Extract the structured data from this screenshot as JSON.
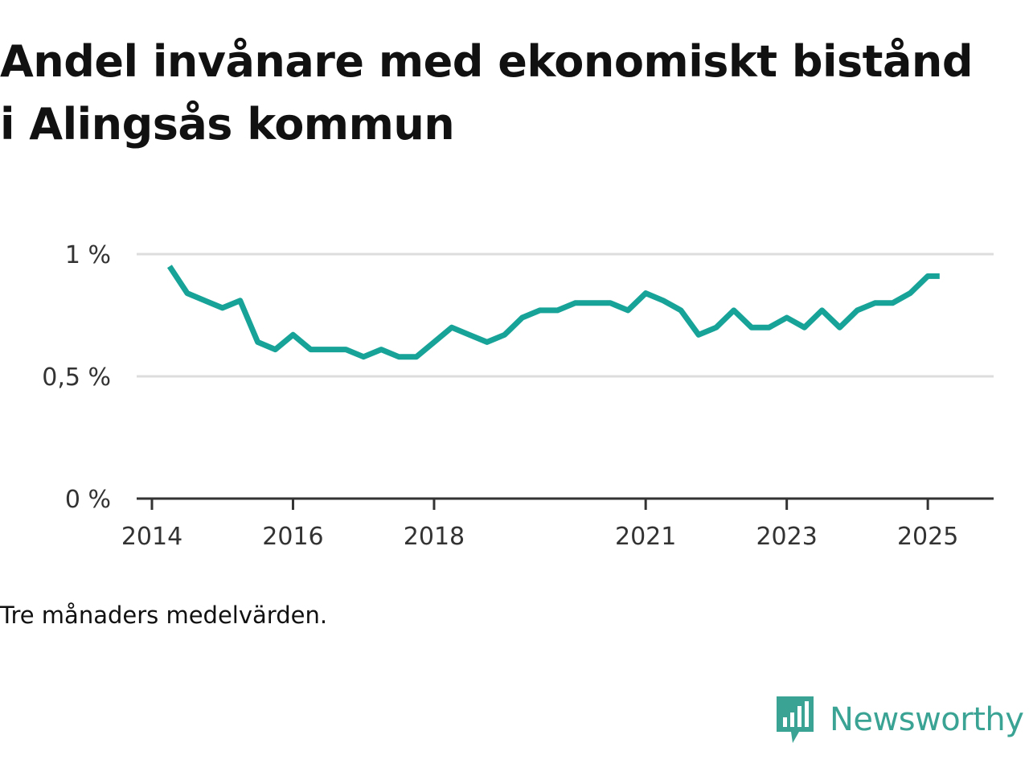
{
  "title": "Andel invånare med ekonomiskt bistånd i Alingsås kommun",
  "note": "Tre månaders medelvärden.",
  "brand": {
    "name": "Newsworthy",
    "color": "#3aa394",
    "icon": "newsworthy-logo-icon"
  },
  "chart_data": {
    "type": "line",
    "title": "Andel invånare med ekonomiskt bistånd i Alingsås kommun",
    "xlabel": "",
    "ylabel": "",
    "y_ticks": [
      {
        "value": 0,
        "label": "0 %"
      },
      {
        "value": 0.5,
        "label": "0,5 %"
      },
      {
        "value": 1,
        "label": "1 %"
      }
    ],
    "x_ticks": [
      "2014",
      "2016",
      "2018",
      "2021",
      "2023",
      "2025"
    ],
    "ylim": [
      0,
      1
    ],
    "xlim": [
      "2014-01",
      "2025-11"
    ],
    "grid": true,
    "line_color": "#17a398",
    "series": [
      {
        "x": [
          "2014-04",
          "2014-07",
          "2014-10",
          "2015-01",
          "2015-04",
          "2015-07",
          "2015-10",
          "2016-01",
          "2016-04",
          "2016-07",
          "2016-10",
          "2017-01",
          "2017-04",
          "2017-07",
          "2017-10",
          "2018-01",
          "2018-04",
          "2018-07",
          "2018-10",
          "2019-01",
          "2019-04",
          "2019-07",
          "2019-10",
          "2020-01",
          "2020-04",
          "2020-07",
          "2020-10",
          "2021-01",
          "2021-04",
          "2021-07",
          "2021-10",
          "2022-01",
          "2022-04",
          "2022-07",
          "2022-10",
          "2023-01",
          "2023-04",
          "2023-07",
          "2023-10",
          "2024-01",
          "2024-04",
          "2024-07",
          "2024-10",
          "2025-01",
          "2025-03"
        ],
        "values": [
          0.95,
          0.84,
          0.81,
          0.78,
          0.81,
          0.64,
          0.61,
          0.67,
          0.61,
          0.61,
          0.61,
          0.58,
          0.61,
          0.58,
          0.58,
          0.64,
          0.7,
          0.67,
          0.64,
          0.67,
          0.74,
          0.77,
          0.77,
          0.8,
          0.8,
          0.8,
          0.77,
          0.84,
          0.81,
          0.77,
          0.67,
          0.7,
          0.77,
          0.7,
          0.7,
          0.74,
          0.7,
          0.77,
          0.7,
          0.77,
          0.8,
          0.8,
          0.84,
          0.91,
          0.91
        ]
      }
    ]
  }
}
